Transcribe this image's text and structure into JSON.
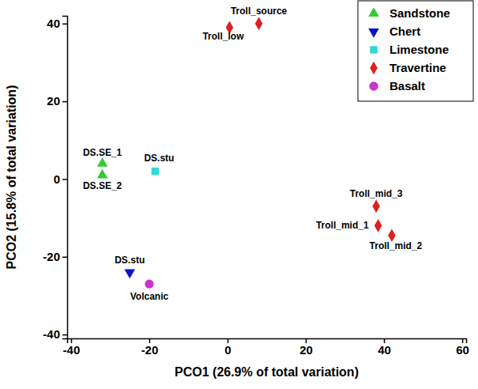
{
  "chart_data": {
    "type": "scatter",
    "x_label": "PCO1 (26.9% of total variation)",
    "y_label": "PCO2 (15.8% of total variation)",
    "xlim": [
      -41,
      61
    ],
    "xticks": [
      -40,
      -20,
      0,
      20,
      40,
      60
    ],
    "ylim": [
      -41,
      42
    ],
    "yticks": [
      -40,
      -20,
      0,
      20,
      40
    ],
    "grid": false,
    "legend": "upper right",
    "series": [
      {
        "name": "Sandstone",
        "color": "#33cc33",
        "marker": "triangle-up",
        "x": [
          -32,
          -32
        ],
        "values": [
          4,
          1
        ],
        "labels": [
          "DS.SE_1",
          "DS.SE_2"
        ]
      },
      {
        "name": "Chert",
        "color": "#0a14c8",
        "marker": "triangle-down",
        "x": [
          -25
        ],
        "values": [
          -24
        ],
        "labels": [
          "DS.stu"
        ]
      },
      {
        "name": "Limestone",
        "color": "#33d6d6",
        "marker": "square",
        "x": [
          -18.5
        ],
        "values": [
          2
        ],
        "labels": [
          "DS.stu"
        ]
      },
      {
        "name": "Travertine",
        "color": "#dd2222",
        "marker": "diamond",
        "x": [
          0.5,
          8,
          38,
          38.5,
          42
        ],
        "values": [
          39,
          40,
          -7,
          -12,
          -14.5
        ],
        "labels": [
          "Troll_low",
          "Troll_source",
          "Troll_mid_3",
          "Troll_mid_1",
          "Troll_mid_2"
        ]
      },
      {
        "name": "Basalt",
        "color": "#cc33cc",
        "marker": "circle",
        "x": [
          -20
        ],
        "values": [
          -27
        ],
        "labels": [
          "Volcanic"
        ]
      }
    ]
  }
}
